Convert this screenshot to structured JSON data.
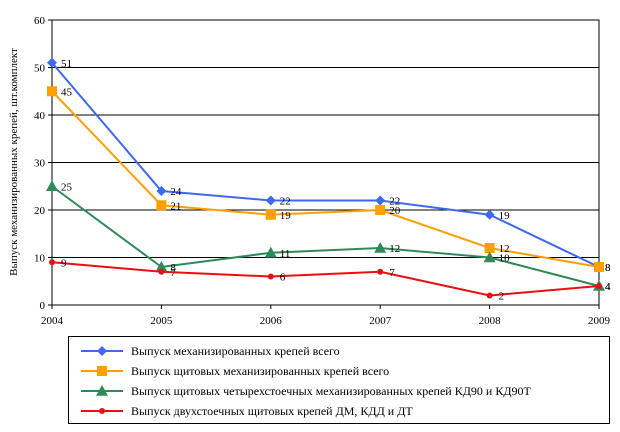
{
  "chart_data": {
    "type": "line",
    "x": [
      "2004",
      "2005",
      "2006",
      "2007",
      "2008",
      "2009"
    ],
    "ylabel": "Выпуск механизированных крепей, шт.комплект",
    "ylim": [
      0,
      60
    ],
    "yticks": [
      "0",
      "10",
      "20",
      "30",
      "40",
      "50",
      "60"
    ],
    "grid": true,
    "legend_position": "bottom",
    "series": [
      {
        "name": "Выпуск механизированных крепей всего",
        "values": [
          51,
          24,
          22,
          22,
          19,
          8
        ],
        "color": "#3d68f0",
        "marker": "diamond"
      },
      {
        "name": "Выпуск щитовых механизированных крепей всего",
        "values": [
          45,
          21,
          19,
          20,
          12,
          8
        ],
        "color": "#ffa000",
        "marker": "square"
      },
      {
        "name": "Выпуск щитовых четырехстоечных механизированных крепей КД90 и КД90Т",
        "values": [
          25,
          8,
          11,
          12,
          10,
          4
        ],
        "color": "#2e8b57",
        "marker": "triangle"
      },
      {
        "name": "Выпуск двухстоечных щитовых крепей ДМ, КДД и ДТ",
        "values": [
          9,
          7,
          6,
          7,
          2,
          4
        ],
        "color": "#e81010",
        "marker": "circle"
      }
    ]
  }
}
